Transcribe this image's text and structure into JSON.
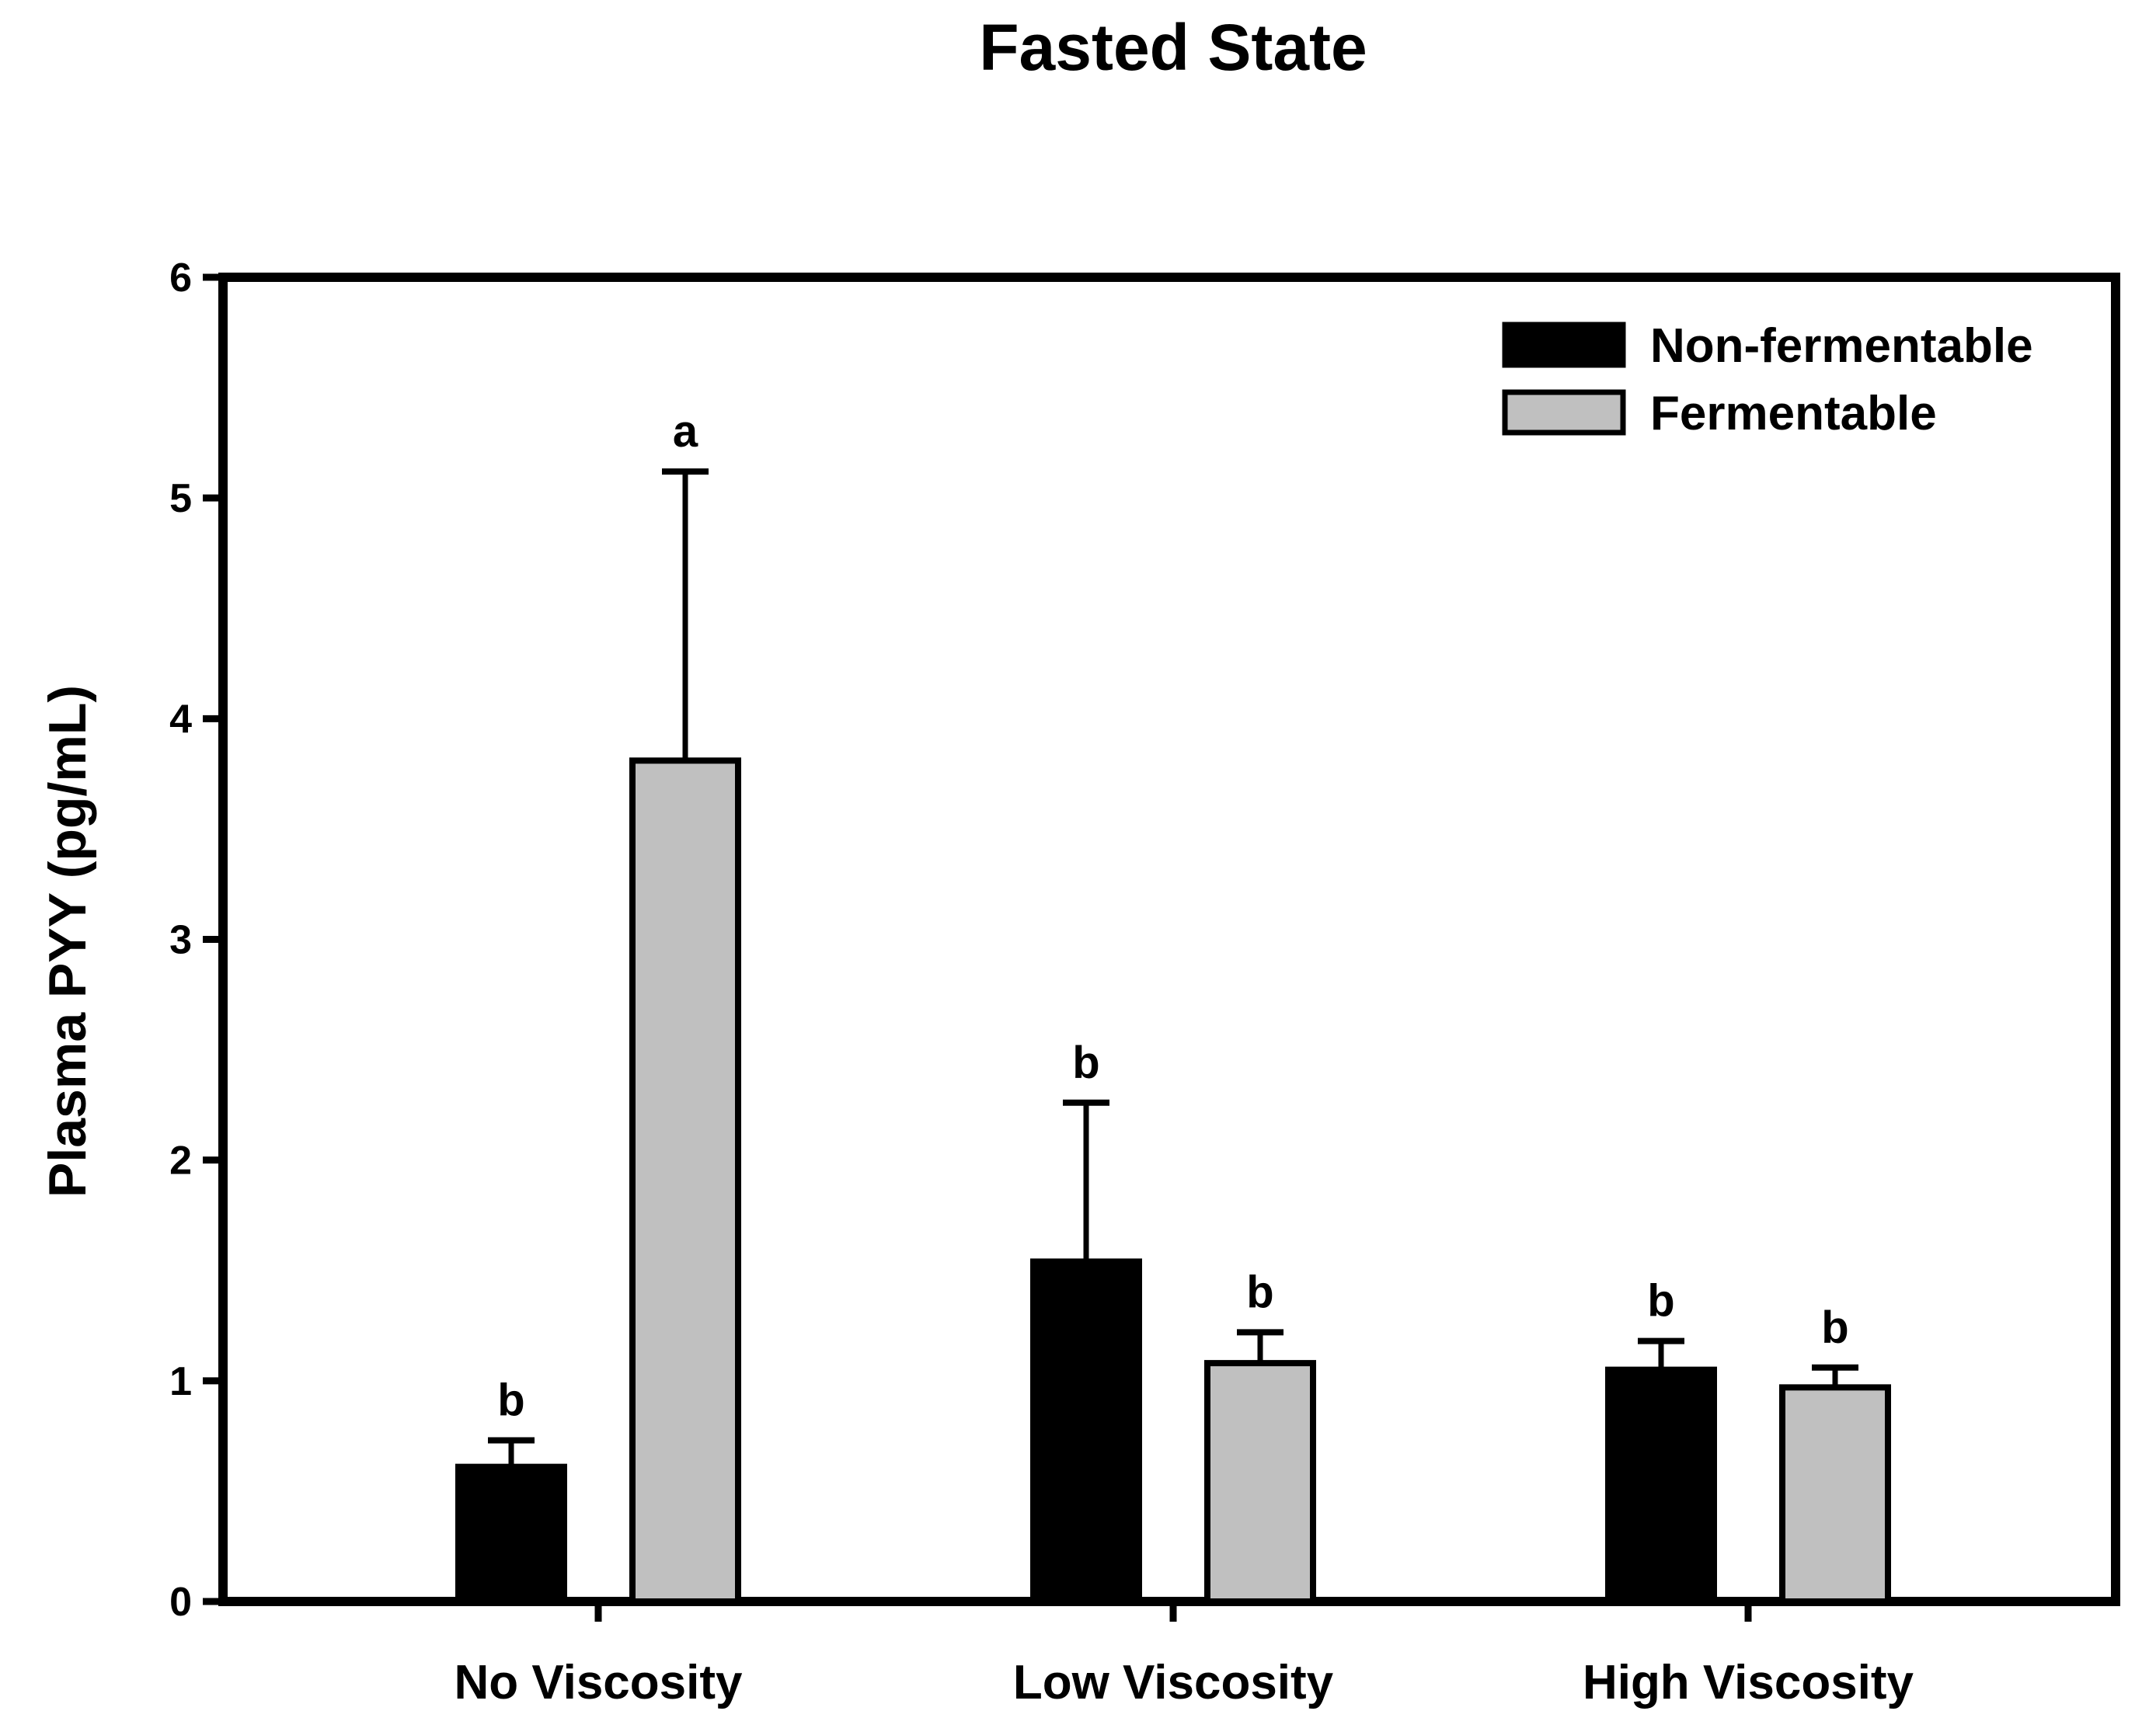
{
  "chart_data": {
    "type": "bar",
    "title": "Fasted State",
    "xlabel": "",
    "ylabel": "Plasma PYY (pg/mL)",
    "ylim": [
      0,
      6
    ],
    "yticks": [
      0,
      1,
      2,
      3,
      4,
      5,
      6
    ],
    "categories": [
      "No Viscosity",
      "Low Viscosity",
      "High Viscosity"
    ],
    "legend_position": "top-right",
    "series": [
      {
        "name": "Non-fermentable",
        "color": "#000000",
        "values": [
          0.61,
          1.54,
          1.05
        ],
        "errors": [
          0.12,
          0.72,
          0.13
        ],
        "significance": [
          "b",
          "b",
          "b"
        ]
      },
      {
        "name": "Fermentable",
        "color": "#c0c0c0",
        "values": [
          3.81,
          1.08,
          0.97
        ],
        "errors": [
          1.31,
          0.14,
          0.09
        ],
        "significance": [
          "a",
          "b",
          "b"
        ]
      }
    ]
  }
}
